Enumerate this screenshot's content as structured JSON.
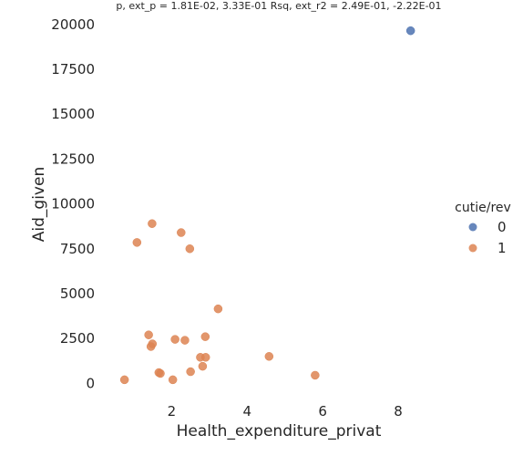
{
  "chart_data": {
    "type": "scatter",
    "title": "p, ext_p = 1.81E-02, 3.33E-01 Rsq, ext_r2 = 2.49E-01, -2.22E-01",
    "xlabel": "Health_expenditure_privat",
    "ylabel": "Aid_given",
    "xlim": [
      0.3,
      9.4
    ],
    "ylim": [
      -1000,
      20600
    ],
    "xticks": [
      2,
      4,
      6,
      8
    ],
    "yticks": [
      0,
      2500,
      5000,
      7500,
      10000,
      12500,
      15000,
      17500,
      20000
    ],
    "xtick_labels": [
      "2",
      "4",
      "6",
      "8"
    ],
    "ytick_labels": [
      "0",
      "2500",
      "5000",
      "7500",
      "10000",
      "12500",
      "15000",
      "17500",
      "20000"
    ],
    "grid": false,
    "legend": {
      "title": "cutie/rev",
      "placement": "center-right",
      "entries": [
        {
          "label": "0",
          "color": "#4c72b0"
        },
        {
          "label": "1",
          "color": "#dd8452"
        }
      ]
    },
    "series": [
      {
        "name": "0",
        "color": "#4c72b0",
        "points": [
          [
            8.33,
            19650
          ]
        ]
      },
      {
        "name": "1",
        "color": "#dd8452",
        "points": [
          [
            0.75,
            200
          ],
          [
            1.08,
            7850
          ],
          [
            1.48,
            8900
          ],
          [
            2.25,
            8400
          ],
          [
            2.48,
            7500
          ],
          [
            3.23,
            4150
          ],
          [
            1.39,
            2700
          ],
          [
            1.45,
            2050
          ],
          [
            1.49,
            2200
          ],
          [
            2.09,
            2450
          ],
          [
            2.35,
            2400
          ],
          [
            2.89,
            2600
          ],
          [
            2.76,
            1450
          ],
          [
            2.9,
            1450
          ],
          [
            2.82,
            950
          ],
          [
            2.5,
            650
          ],
          [
            1.66,
            600
          ],
          [
            1.7,
            550
          ],
          [
            2.03,
            200
          ],
          [
            4.58,
            1500
          ],
          [
            5.8,
            450
          ]
        ]
      }
    ]
  }
}
